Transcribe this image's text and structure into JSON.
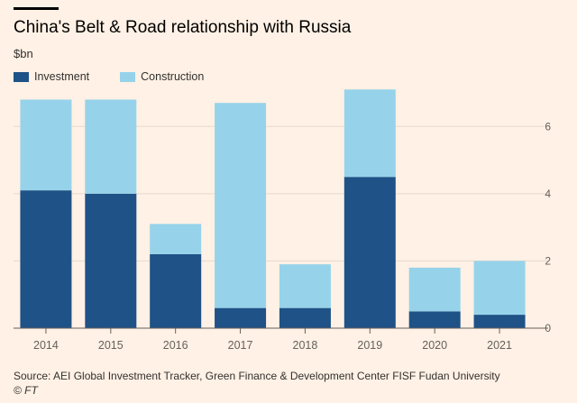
{
  "header": {
    "title": "China's Belt & Road relationship with Russia",
    "subtitle": "$bn"
  },
  "colors": {
    "background": "#fff1e5",
    "investment": "#1f5287",
    "construction": "#96d3ea",
    "gridline": "#e6d9ce",
    "axis": "#66605c"
  },
  "footer": {
    "source": "Source: AEI Global Investment Tracker, Green Finance & Development Center FISF Fudan University",
    "credit": "© FT"
  },
  "chart_data": {
    "type": "bar",
    "stacked": true,
    "categories": [
      "2014",
      "2015",
      "2016",
      "2017",
      "2018",
      "2019",
      "2020",
      "2021"
    ],
    "series": [
      {
        "name": "Investment",
        "values": [
          4.1,
          4.0,
          2.2,
          0.6,
          0.6,
          4.5,
          0.5,
          0.4
        ]
      },
      {
        "name": "Construction",
        "values": [
          2.7,
          2.8,
          0.9,
          6.1,
          1.3,
          2.6,
          1.3,
          1.6
        ]
      }
    ],
    "ylabel": "$bn",
    "ylim": [
      0,
      7
    ],
    "yticks": [
      0,
      2,
      4,
      6
    ],
    "grid": true,
    "y_axis_side": "right",
    "legend_position": "top-left"
  }
}
